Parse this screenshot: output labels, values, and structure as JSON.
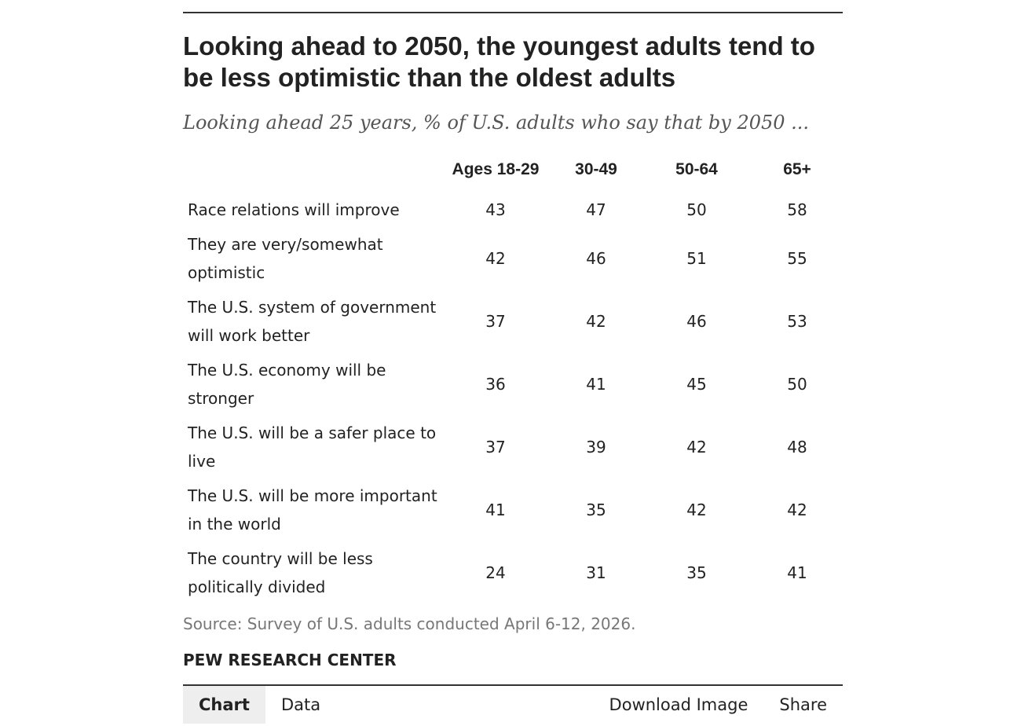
{
  "header": {
    "title": "Looking ahead to 2050, the youngest adults tend to be less optimistic than the oldest adults",
    "subtitle": "Looking ahead 25 years, % of U.S. adults who say that by 2050 ..."
  },
  "table": {
    "columns": [
      "Ages 18-29",
      "30-49",
      "50-64",
      "65+"
    ],
    "rows": [
      {
        "label": "Race relations will improve",
        "values": [
          43,
          47,
          50,
          58
        ]
      },
      {
        "label": "They are very/somewhat optimistic",
        "values": [
          42,
          46,
          51,
          55
        ]
      },
      {
        "label": "The U.S. system of government will work better",
        "values": [
          37,
          42,
          46,
          53
        ]
      },
      {
        "label": "The U.S. economy will be stronger",
        "values": [
          36,
          41,
          45,
          50
        ]
      },
      {
        "label": "The U.S. will be a safer place to live",
        "values": [
          37,
          39,
          42,
          48
        ]
      },
      {
        "label": "The U.S. will be more important in the world",
        "values": [
          41,
          35,
          42,
          42
        ]
      },
      {
        "label": "The country will be less politically divided",
        "values": [
          24,
          31,
          35,
          41
        ]
      }
    ]
  },
  "footer": {
    "source": "Source: Survey of U.S. adults conducted April 6-12, 2026.",
    "brand": "PEW RESEARCH CENTER"
  },
  "tabs": {
    "left": [
      "Chart",
      "Data"
    ],
    "right": [
      "Download Image",
      "Share"
    ]
  }
}
